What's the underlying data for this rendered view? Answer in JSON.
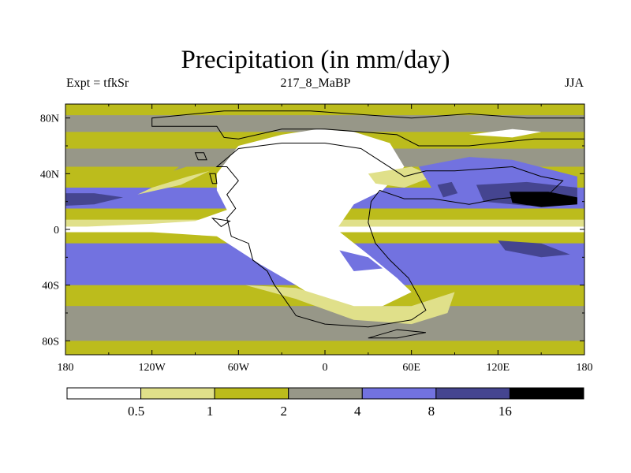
{
  "chart_data": {
    "type": "heatmap",
    "title": "Precipitation (in mm/day)",
    "subtitle_left": "Expt = tfkSr",
    "subtitle_center": "217_8_MaBP",
    "subtitle_right": "JJA",
    "x_ticks": [
      "180",
      "120W",
      "60W",
      "0",
      "60E",
      "120E",
      "180"
    ],
    "x_values": [
      -180,
      -120,
      -60,
      0,
      60,
      120,
      180
    ],
    "y_ticks": [
      "80N",
      "40N",
      "0",
      "40S",
      "80S"
    ],
    "y_values": [
      80,
      40,
      0,
      -40,
      -80
    ],
    "xlim": [
      -180,
      180
    ],
    "ylim": [
      -90,
      90
    ],
    "colorbar": {
      "levels": [
        "0.5",
        "1",
        "2",
        "4",
        "8",
        "16"
      ],
      "colors": [
        "#ffffff",
        "#e0e08a",
        "#bcbc1c",
        "#979788",
        "#7272e0",
        "#454590",
        "#000000"
      ]
    },
    "bands": [
      {
        "y0": 90,
        "y1": 82,
        "class": 2
      },
      {
        "y0": 82,
        "y1": 70,
        "class": 3
      },
      {
        "y0": 70,
        "y1": 58,
        "class": 2
      },
      {
        "y0": 58,
        "y1": 45,
        "class": 3
      },
      {
        "y0": 45,
        "y1": 30,
        "class": 2
      },
      {
        "y0": 30,
        "y1": 15,
        "class": 4
      },
      {
        "y0": 15,
        "y1": 7,
        "class": 2
      },
      {
        "y0": 7,
        "y1": 2,
        "class": 1
      },
      {
        "y0": 2,
        "y1": -2,
        "class": 0
      },
      {
        "y0": -2,
        "y1": -10,
        "class": 2
      },
      {
        "y0": -10,
        "y1": -40,
        "class": 4
      },
      {
        "y0": -40,
        "y1": -55,
        "class": 2
      },
      {
        "y0": -55,
        "y1": -80,
        "class": 3
      },
      {
        "y0": -80,
        "y1": -90,
        "class": 2
      }
    ],
    "regions": [
      {
        "class": 0,
        "points": [
          [
            -75,
            40
          ],
          [
            -60,
            60
          ],
          [
            -30,
            68
          ],
          [
            -5,
            72
          ],
          [
            20,
            70
          ],
          [
            45,
            62
          ],
          [
            55,
            45
          ],
          [
            40,
            28
          ],
          [
            20,
            18
          ],
          [
            8,
            0
          ],
          [
            30,
            -18
          ],
          [
            50,
            -35
          ],
          [
            60,
            -45
          ],
          [
            40,
            -55
          ],
          [
            10,
            -60
          ],
          [
            -20,
            -40
          ],
          [
            -45,
            -25
          ],
          [
            -60,
            -15
          ],
          [
            -75,
            -5
          ],
          [
            -120,
            -2
          ],
          [
            -160,
            0
          ],
          [
            -165,
            2
          ],
          [
            -120,
            4
          ],
          [
            -90,
            6
          ],
          [
            -68,
            14
          ],
          [
            -75,
            28
          ]
        ]
      },
      {
        "class": 1,
        "points": [
          [
            -130,
            25
          ],
          [
            -100,
            32
          ],
          [
            -80,
            42
          ],
          [
            -95,
            38
          ],
          [
            -120,
            30
          ]
        ]
      },
      {
        "class": 1,
        "points": [
          [
            30,
            40
          ],
          [
            60,
            45
          ],
          [
            75,
            38
          ],
          [
            55,
            30
          ],
          [
            35,
            33
          ]
        ]
      },
      {
        "class": 1,
        "points": [
          [
            -55,
            -40
          ],
          [
            -20,
            -50
          ],
          [
            20,
            -65
          ],
          [
            60,
            -68
          ],
          [
            85,
            -60
          ],
          [
            90,
            -45
          ],
          [
            60,
            -55
          ],
          [
            20,
            -55
          ],
          [
            -20,
            -42
          ]
        ]
      },
      {
        "class": 0,
        "points": [
          [
            100,
            68
          ],
          [
            130,
            72
          ],
          [
            150,
            70
          ],
          [
            130,
            66
          ]
        ]
      },
      {
        "class": 4,
        "points": [
          [
            65,
            45
          ],
          [
            100,
            52
          ],
          [
            130,
            50
          ],
          [
            175,
            38
          ],
          [
            175,
            25
          ],
          [
            140,
            20
          ],
          [
            100,
            18
          ],
          [
            75,
            28
          ]
        ]
      },
      {
        "class": 5,
        "points": [
          [
            105,
            32
          ],
          [
            140,
            34
          ],
          [
            175,
            30
          ],
          [
            175,
            20
          ],
          [
            140,
            17
          ],
          [
            110,
            20
          ]
        ]
      },
      {
        "class": 6,
        "points": [
          [
            128,
            27
          ],
          [
            155,
            27
          ],
          [
            175,
            23
          ],
          [
            175,
            18
          ],
          [
            150,
            16
          ],
          [
            130,
            19
          ]
        ]
      },
      {
        "class": 5,
        "points": [
          [
            78,
            32
          ],
          [
            88,
            34
          ],
          [
            92,
            26
          ],
          [
            82,
            23
          ]
        ]
      },
      {
        "class": 5,
        "points": [
          [
            -180,
            26
          ],
          [
            -160,
            26
          ],
          [
            -140,
            23
          ],
          [
            -160,
            18
          ],
          [
            -180,
            17
          ]
        ]
      },
      {
        "class": 5,
        "points": [
          [
            120,
            -8
          ],
          [
            150,
            -10
          ],
          [
            170,
            -18
          ],
          [
            150,
            -20
          ],
          [
            125,
            -15
          ]
        ]
      },
      {
        "class": 4,
        "points": [
          [
            10,
            -15
          ],
          [
            30,
            -20
          ],
          [
            40,
            -28
          ],
          [
            20,
            -30
          ]
        ]
      },
      {
        "class": 3,
        "points": [
          [
            -105,
            42
          ],
          [
            -90,
            47
          ],
          [
            -85,
            50
          ],
          [
            -100,
            46
          ]
        ]
      }
    ],
    "continents": [
      [
        [
          -60,
          65
        ],
        [
          -30,
          72
        ],
        [
          0,
          72
        ],
        [
          25,
          70
        ],
        [
          50,
          68
        ],
        [
          65,
          60
        ],
        [
          100,
          60
        ],
        [
          145,
          65
        ],
        [
          180,
          65
        ],
        [
          180,
          80
        ],
        [
          140,
          80
        ],
        [
          100,
          83
        ],
        [
          60,
          80
        ],
        [
          -10,
          85
        ],
        [
          -70,
          85
        ],
        [
          -120,
          80
        ],
        [
          -120,
          74
        ],
        [
          -75,
          74
        ],
        [
          -70,
          66
        ]
      ],
      [
        [
          -75,
          45
        ],
        [
          -60,
          58
        ],
        [
          -30,
          62
        ],
        [
          0,
          62
        ],
        [
          25,
          58
        ],
        [
          40,
          48
        ],
        [
          55,
          38
        ],
        [
          70,
          42
        ],
        [
          90,
          42
        ],
        [
          130,
          45
        ],
        [
          150,
          38
        ],
        [
          165,
          35
        ],
        [
          155,
          25
        ],
        [
          120,
          22
        ],
        [
          100,
          18
        ],
        [
          75,
          22
        ],
        [
          55,
          22
        ],
        [
          38,
          28
        ],
        [
          32,
          20
        ],
        [
          30,
          5
        ],
        [
          35,
          -10
        ],
        [
          45,
          -22
        ],
        [
          58,
          -35
        ],
        [
          65,
          -48
        ],
        [
          70,
          -58
        ],
        [
          60,
          -65
        ],
        [
          30,
          -70
        ],
        [
          0,
          -68
        ],
        [
          -20,
          -62
        ],
        [
          -28,
          -50
        ],
        [
          -35,
          -40
        ],
        [
          -40,
          -30
        ],
        [
          -50,
          -22
        ],
        [
          -53,
          -10
        ],
        [
          -65,
          -5
        ],
        [
          -68,
          8
        ],
        [
          -62,
          15
        ],
        [
          -68,
          25
        ],
        [
          -60,
          35
        ],
        [
          -68,
          45
        ]
      ],
      [
        [
          -90,
          55
        ],
        [
          -88,
          50
        ],
        [
          -82,
          50
        ],
        [
          -84,
          55
        ]
      ],
      [
        [
          -80,
          40
        ],
        [
          -78,
          33
        ],
        [
          -75,
          33
        ],
        [
          -76,
          40
        ]
      ],
      [
        [
          -78,
          8
        ],
        [
          -72,
          2
        ],
        [
          -66,
          6
        ]
      ],
      [
        [
          30,
          -78
        ],
        [
          50,
          -78
        ],
        [
          70,
          -74
        ],
        [
          50,
          -72
        ]
      ]
    ]
  }
}
